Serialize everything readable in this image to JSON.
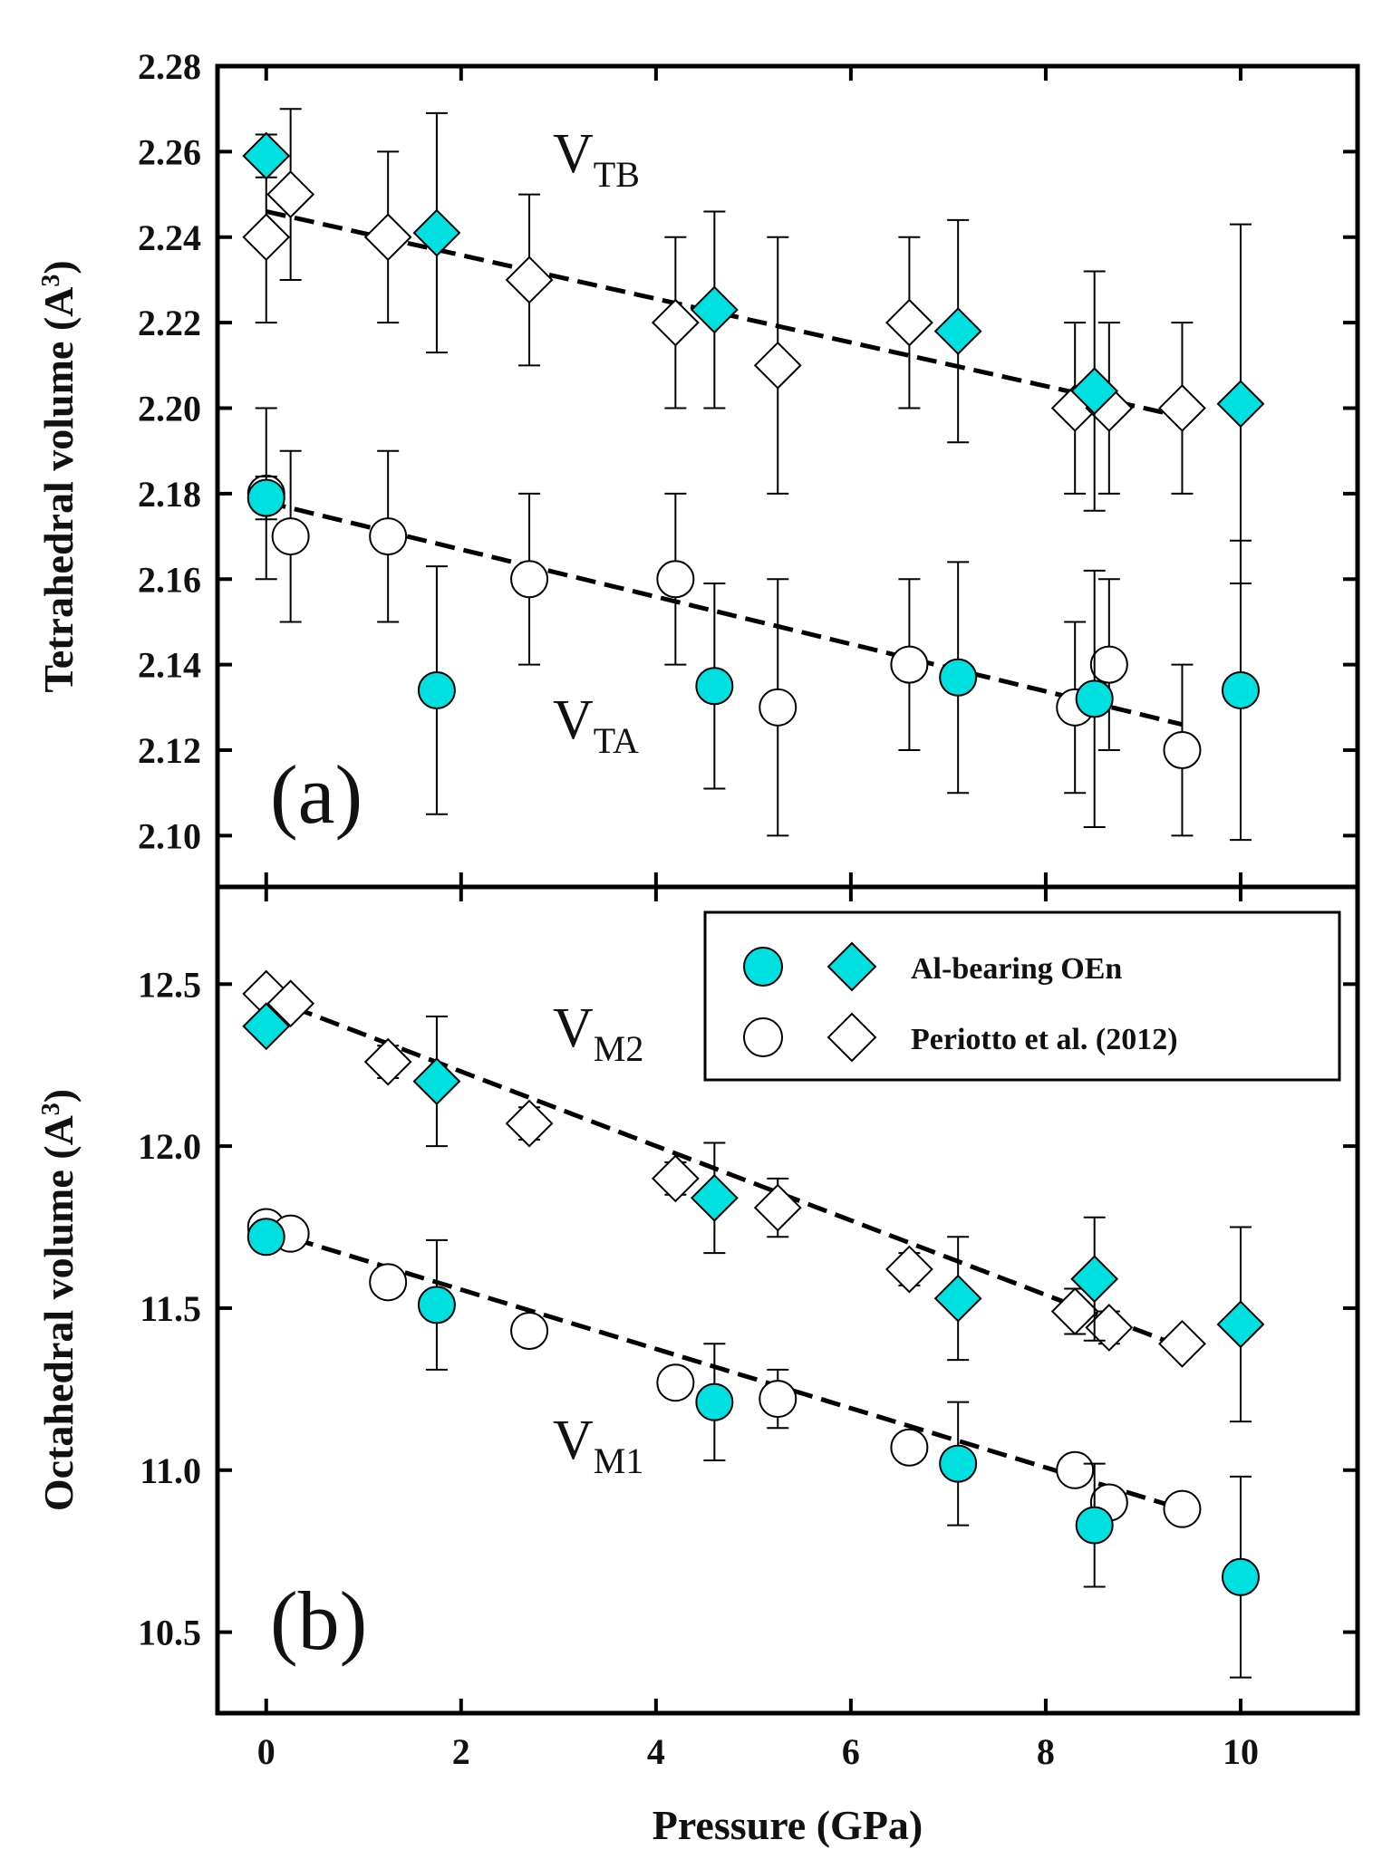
{
  "chart_data": [
    {
      "type": "scatter",
      "panel_label": "(a)",
      "ylabel": "Tetrahedral volume (A³)",
      "ylabel_main": "Tetrahedral volume (A",
      "ylabel_sup": "3",
      "ylabel_end": ")",
      "xlim": [
        -0.5,
        11.2
      ],
      "ylim": [
        2.088,
        2.28
      ],
      "yticks": [
        2.1,
        2.12,
        2.14,
        2.16,
        2.18,
        2.2,
        2.22,
        2.24,
        2.26,
        2.28
      ],
      "ytick_labels": [
        "2.10",
        "2.12",
        "2.14",
        "2.16",
        "2.18",
        "2.20",
        "2.22",
        "2.24",
        "2.26",
        "2.28"
      ],
      "annotations": [
        {
          "main": "V",
          "sub": "TB",
          "x": 2.8,
          "y": 2.257
        },
        {
          "main": "V",
          "sub": "TA",
          "x": 2.8,
          "y": 2.13
        }
      ],
      "series": [
        {
          "name": "Al-bearing OEn (V_TB)",
          "marker": "diamond",
          "filled": true,
          "color": "#00e0e0",
          "points": [
            {
              "x": 0.0,
              "y": 2.259,
              "err": 0.005
            },
            {
              "x": 1.75,
              "y": 2.241,
              "err": 0.028
            },
            {
              "x": 4.6,
              "y": 2.223,
              "err": 0.023
            },
            {
              "x": 7.1,
              "y": 2.218,
              "err": 0.026
            },
            {
              "x": 8.5,
              "y": 2.204,
              "err": 0.028
            },
            {
              "x": 10.0,
              "y": 2.201,
              "err": 0.042
            }
          ]
        },
        {
          "name": "Periotto et al. (2012) (V_TB)",
          "marker": "diamond",
          "filled": false,
          "color": "#ffffff",
          "points": [
            {
              "x": 0.0,
              "y": 2.24,
              "err": 0.02
            },
            {
              "x": 0.25,
              "y": 2.25,
              "err": 0.02
            },
            {
              "x": 1.25,
              "y": 2.24,
              "err": 0.02
            },
            {
              "x": 2.7,
              "y": 2.23,
              "err": 0.02
            },
            {
              "x": 4.2,
              "y": 2.22,
              "err": 0.02
            },
            {
              "x": 5.25,
              "y": 2.21,
              "err": 0.03
            },
            {
              "x": 6.6,
              "y": 2.22,
              "err": 0.02
            },
            {
              "x": 8.3,
              "y": 2.2,
              "err": 0.02
            },
            {
              "x": 8.65,
              "y": 2.2,
              "err": 0.02
            },
            {
              "x": 9.4,
              "y": 2.2,
              "err": 0.02
            }
          ]
        },
        {
          "name": "Al-bearing OEn (V_TA)",
          "marker": "circle",
          "filled": true,
          "color": "#00e0e0",
          "points": [
            {
              "x": 0.0,
              "y": 2.179,
              "err": 0.005
            },
            {
              "x": 1.75,
              "y": 2.134,
              "err": 0.029
            },
            {
              "x": 4.6,
              "y": 2.135,
              "err": 0.024
            },
            {
              "x": 7.1,
              "y": 2.137,
              "err": 0.027
            },
            {
              "x": 8.5,
              "y": 2.132,
              "err": 0.03
            },
            {
              "x": 10.0,
              "y": 2.134,
              "err": 0.035
            }
          ]
        },
        {
          "name": "Periotto et al. (2012) (V_TA)",
          "marker": "circle",
          "filled": false,
          "color": "#ffffff",
          "points": [
            {
              "x": 0.0,
              "y": 2.18,
              "err": 0.02
            },
            {
              "x": 0.25,
              "y": 2.17,
              "err": 0.02
            },
            {
              "x": 1.25,
              "y": 2.17,
              "err": 0.02
            },
            {
              "x": 2.7,
              "y": 2.16,
              "err": 0.02
            },
            {
              "x": 4.2,
              "y": 2.16,
              "err": 0.02
            },
            {
              "x": 5.25,
              "y": 2.13,
              "err": 0.03
            },
            {
              "x": 6.6,
              "y": 2.14,
              "err": 0.02
            },
            {
              "x": 8.3,
              "y": 2.13,
              "err": 0.02
            },
            {
              "x": 8.65,
              "y": 2.14,
              "err": 0.02
            },
            {
              "x": 9.4,
              "y": 2.12,
              "err": 0.02
            }
          ]
        }
      ],
      "fit_lines": [
        {
          "name": "V_TB fit",
          "x": [
            0.0,
            9.4
          ],
          "y": [
            2.246,
            2.198
          ]
        },
        {
          "name": "V_TA fit",
          "x": [
            0.0,
            9.4
          ],
          "y": [
            2.178,
            2.126
          ]
        }
      ]
    },
    {
      "type": "scatter",
      "panel_label": "(b)",
      "ylabel": "Octahedral volume (A³)",
      "ylabel_main": "Octahedral volume (A",
      "ylabel_sup": "3",
      "ylabel_end": ")",
      "xlabel": "Pressure (GPa)",
      "xlim": [
        -0.5,
        11.2
      ],
      "ylim": [
        10.25,
        12.8
      ],
      "xticks": [
        0,
        2,
        4,
        6,
        8,
        10
      ],
      "xtick_labels": [
        "0",
        "2",
        "4",
        "6",
        "8",
        "10"
      ],
      "yticks": [
        10.5,
        11.0,
        11.5,
        12.0,
        12.5
      ],
      "ytick_labels": [
        "10.5",
        "11.0",
        "11.5",
        "12.0",
        "12.5"
      ],
      "annotations": [
        {
          "main": "V",
          "sub": "M2",
          "x": 2.8,
          "y": 12.27
        },
        {
          "main": "V",
          "sub": "M1",
          "x": 2.8,
          "y": 11.03
        }
      ],
      "legend": {
        "position": "top-right",
        "entries": [
          {
            "label": "Al-bearing OEn",
            "filled": true
          },
          {
            "label": "Periotto et al. (2012)",
            "filled": false
          }
        ]
      },
      "series": [
        {
          "name": "Al-bearing OEn (V_M2)",
          "marker": "diamond",
          "filled": true,
          "color": "#00e0e0",
          "points": [
            {
              "x": 0.0,
              "y": 12.37,
              "err": 0.02
            },
            {
              "x": 1.75,
              "y": 12.2,
              "err": 0.2
            },
            {
              "x": 4.6,
              "y": 11.84,
              "err": 0.17
            },
            {
              "x": 7.1,
              "y": 11.53,
              "err": 0.19
            },
            {
              "x": 8.5,
              "y": 11.59,
              "err": 0.19
            },
            {
              "x": 10.0,
              "y": 11.45,
              "err": 0.3
            }
          ]
        },
        {
          "name": "Periotto et al. (2012) (V_M2)",
          "marker": "diamond",
          "filled": false,
          "color": "#ffffff",
          "points": [
            {
              "x": 0.0,
              "y": 12.47,
              "err": 0.02
            },
            {
              "x": 0.25,
              "y": 12.44,
              "err": 0.02
            },
            {
              "x": 1.25,
              "y": 12.26,
              "err": 0.05
            },
            {
              "x": 2.7,
              "y": 12.07,
              "err": 0.05
            },
            {
              "x": 4.2,
              "y": 11.9,
              "err": 0.05
            },
            {
              "x": 5.25,
              "y": 11.81,
              "err": 0.09
            },
            {
              "x": 6.6,
              "y": 11.62,
              "err": 0.05
            },
            {
              "x": 8.3,
              "y": 11.49,
              "err": 0.07
            },
            {
              "x": 8.65,
              "y": 11.44,
              "err": 0.05
            },
            {
              "x": 9.4,
              "y": 11.39,
              "err": 0.03
            }
          ]
        },
        {
          "name": "Al-bearing OEn (V_M1)",
          "marker": "circle",
          "filled": true,
          "color": "#00e0e0",
          "points": [
            {
              "x": 0.0,
              "y": 11.72,
              "err": 0.02
            },
            {
              "x": 1.75,
              "y": 11.51,
              "err": 0.2
            },
            {
              "x": 4.6,
              "y": 11.21,
              "err": 0.18
            },
            {
              "x": 7.1,
              "y": 11.02,
              "err": 0.19
            },
            {
              "x": 8.5,
              "y": 10.83,
              "err": 0.19
            },
            {
              "x": 10.0,
              "y": 10.67,
              "err": 0.31
            }
          ]
        },
        {
          "name": "Periotto et al. (2012) (V_M1)",
          "marker": "circle",
          "filled": false,
          "color": "#ffffff",
          "points": [
            {
              "x": 0.0,
              "y": 11.75,
              "err": 0.02
            },
            {
              "x": 0.25,
              "y": 11.73,
              "err": 0.02
            },
            {
              "x": 1.25,
              "y": 11.58,
              "err": 0.03
            },
            {
              "x": 2.7,
              "y": 11.43,
              "err": 0.03
            },
            {
              "x": 4.2,
              "y": 11.27,
              "err": 0.03
            },
            {
              "x": 5.25,
              "y": 11.22,
              "err": 0.09
            },
            {
              "x": 6.6,
              "y": 11.07,
              "err": 0.03
            },
            {
              "x": 8.3,
              "y": 11.0,
              "err": 0.03
            },
            {
              "x": 8.65,
              "y": 10.9,
              "err": 0.03
            },
            {
              "x": 9.4,
              "y": 10.88,
              "err": 0.03
            }
          ]
        }
      ],
      "fit_lines": [
        {
          "name": "V_M2 fit",
          "x": [
            0.0,
            9.4
          ],
          "y": [
            12.46,
            11.38
          ]
        },
        {
          "name": "V_M1 fit",
          "x": [
            0.0,
            9.4
          ],
          "y": [
            11.74,
            10.88
          ]
        }
      ]
    }
  ]
}
